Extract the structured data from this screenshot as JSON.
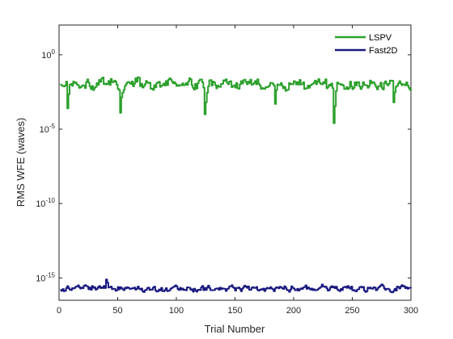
{
  "chart_data": {
    "type": "line",
    "title": "",
    "xlabel": "Trial Number",
    "ylabel": "RMS WFE (waves)",
    "xlim": [
      0,
      300
    ],
    "ylim_log10": [
      -16.5,
      2
    ],
    "y_scale": "log",
    "x_ticks": [
      0,
      50,
      100,
      150,
      200,
      250,
      300
    ],
    "y_ticks": [
      {
        "exponent": 0,
        "label_base": "10",
        "label_exp": "0"
      },
      {
        "exponent": -5,
        "label_base": "10",
        "label_exp": "-5"
      },
      {
        "exponent": -10,
        "label_base": "10",
        "label_exp": "-10"
      },
      {
        "exponent": -15,
        "label_base": "10",
        "label_exp": "-15"
      }
    ],
    "grid": false,
    "legend_position": "top-right",
    "series": [
      {
        "name": "LSPV",
        "color": "#2ca02c",
        "level_log10": -2.0,
        "jitter_log10": 0.45,
        "dips": [
          [
            7,
            -3.6
          ],
          [
            52,
            -3.9
          ],
          [
            124,
            -4.0
          ],
          [
            184,
            -3.3
          ],
          [
            234,
            -4.6
          ],
          [
            285,
            -3.2
          ]
        ]
      },
      {
        "name": "Fast2D",
        "color": "#1a1a80",
        "level_log10": -15.7,
        "jitter_log10": 0.22,
        "dips": [
          [
            40,
            -15.1
          ]
        ]
      }
    ]
  }
}
